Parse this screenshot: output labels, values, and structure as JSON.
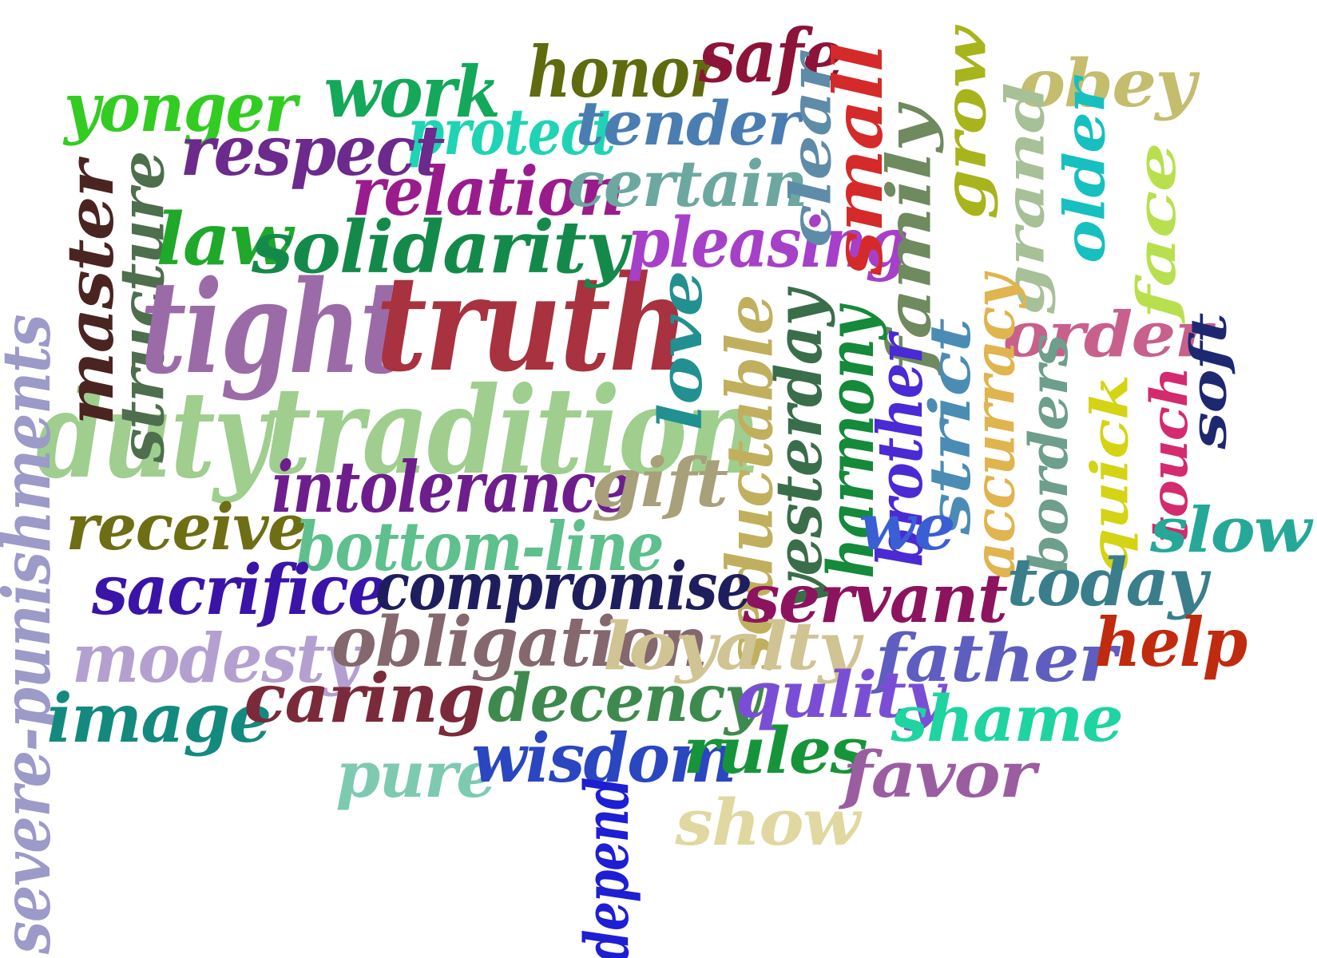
{
  "words": [
    {
      "id": "tradition",
      "text": "tradition",
      "color": "#9fce8e"
    },
    {
      "id": "duty",
      "text": "duty",
      "color": "#9fce8e"
    },
    {
      "id": "tight",
      "text": "tight",
      "color": "#9b6ba8"
    },
    {
      "id": "truth",
      "text": "truth",
      "color": "#a8323f"
    },
    {
      "id": "severe-punishments",
      "text": "severe-punishments",
      "color": "#9b9ac8"
    },
    {
      "id": "master",
      "text": "master",
      "color": "#4a2420"
    },
    {
      "id": "structure",
      "text": "structure",
      "color": "#4e6e4e"
    },
    {
      "id": "yonger",
      "text": "yonger",
      "color": "#33cc22"
    },
    {
      "id": "work",
      "text": "work",
      "color": "#14a85a"
    },
    {
      "id": "honor",
      "text": "honor",
      "color": "#5f6b0e"
    },
    {
      "id": "safe",
      "text": "safe",
      "color": "#8c1438"
    },
    {
      "id": "obey",
      "text": "obey",
      "color": "#c4bd6e"
    },
    {
      "id": "protect",
      "text": "protect",
      "color": "#1fd4b4"
    },
    {
      "id": "tender",
      "text": "tender",
      "color": "#4a7eb2"
    },
    {
      "id": "respect",
      "text": "respect",
      "color": "#6b2a8c"
    },
    {
      "id": "relation",
      "text": "relation",
      "color": "#9a1c8c"
    },
    {
      "id": "certain",
      "text": "certain",
      "color": "#6ca8a0"
    },
    {
      "id": "law",
      "text": "law",
      "color": "#1fa82a"
    },
    {
      "id": "solidarity",
      "text": "solidarity",
      "color": "#148a4a"
    },
    {
      "id": "pleasing",
      "text": "pleasing",
      "color": "#a640c8"
    },
    {
      "id": "clear",
      "text": "clear",
      "color": "#5e8ca8"
    },
    {
      "id": "small",
      "text": "small",
      "color": "#d42a2a"
    },
    {
      "id": "family",
      "text": "family",
      "color": "#6e8a5e"
    },
    {
      "id": "grow",
      "text": "grow",
      "color": "#a8b41c"
    },
    {
      "id": "grand",
      "text": "grand",
      "color": "#a8c098"
    },
    {
      "id": "older",
      "text": "older",
      "color": "#16c0c0"
    },
    {
      "id": "face",
      "text": "face",
      "color": "#b8e04e"
    },
    {
      "id": "order",
      "text": "order",
      "color": "#c8608c"
    },
    {
      "id": "soft",
      "text": "soft",
      "color": "#1e2870"
    },
    {
      "id": "touch",
      "text": "touch",
      "color": "#d42a6e"
    },
    {
      "id": "quick",
      "text": "quick",
      "color": "#d4d414"
    },
    {
      "id": "borders",
      "text": "borders",
      "color": "#6e9e8c"
    },
    {
      "id": "accurracy",
      "text": "accurracy",
      "color": "#e0b44e"
    },
    {
      "id": "strict",
      "text": "strict",
      "color": "#4a8cb4"
    },
    {
      "id": "brother",
      "text": "brother",
      "color": "#4a2ad4"
    },
    {
      "id": "harmony",
      "text": "harmony",
      "color": "#148a3a"
    },
    {
      "id": "yesterday",
      "text": "yesterday",
      "color": "#3a6e4a"
    },
    {
      "id": "seductable",
      "text": "seductable",
      "color": "#c0b05e"
    },
    {
      "id": "love",
      "text": "love",
      "color": "#229090"
    },
    {
      "id": "intolerance",
      "text": "intolerance",
      "color": "#6e1e8c"
    },
    {
      "id": "gift",
      "text": "gift",
      "color": "#a8a07a"
    },
    {
      "id": "receive",
      "text": "receive",
      "color": "#6e6e14"
    },
    {
      "id": "bottom-line",
      "text": "bottom-line",
      "color": "#5ec08c"
    },
    {
      "id": "we",
      "text": "we",
      "color": "#3a5ed4"
    },
    {
      "id": "slow",
      "text": "slow",
      "color": "#26a898"
    },
    {
      "id": "sacrifice",
      "text": "sacrifice",
      "color": "#3a14a8"
    },
    {
      "id": "compromise",
      "text": "compromise",
      "color": "#1e1e5e"
    },
    {
      "id": "servant",
      "text": "servant",
      "color": "#8c145e"
    },
    {
      "id": "today",
      "text": "today",
      "color": "#3a7e8c"
    },
    {
      "id": "modesty",
      "text": "modesty",
      "color": "#b4a0d0"
    },
    {
      "id": "obligation",
      "text": "obligation",
      "color": "#84686e"
    },
    {
      "id": "loyalty",
      "text": "loyalty",
      "color": "#d0c494"
    },
    {
      "id": "father",
      "text": "father",
      "color": "#5e5ec0"
    },
    {
      "id": "help",
      "text": "help",
      "color": "#c02a0e"
    },
    {
      "id": "image",
      "text": "image",
      "color": "#148a7e"
    },
    {
      "id": "caring",
      "text": "caring",
      "color": "#7a2a3a"
    },
    {
      "id": "decency",
      "text": "decency",
      "color": "#3e8a4e"
    },
    {
      "id": "qulity",
      "text": "qulity",
      "color": "#7a4ed4"
    },
    {
      "id": "shame",
      "text": "shame",
      "color": "#1ed4a0"
    },
    {
      "id": "pure",
      "text": "pure",
      "color": "#7ecab0"
    },
    {
      "id": "wisdom",
      "text": "wisdom",
      "color": "#2a46c0"
    },
    {
      "id": "rules",
      "text": "rules",
      "color": "#16943a"
    },
    {
      "id": "favor",
      "text": "favor",
      "color": "#9a5ea0"
    },
    {
      "id": "show",
      "text": "show",
      "color": "#e0d8a0"
    },
    {
      "id": "depend",
      "text": "depend",
      "color": "#1e1ed4"
    }
  ]
}
